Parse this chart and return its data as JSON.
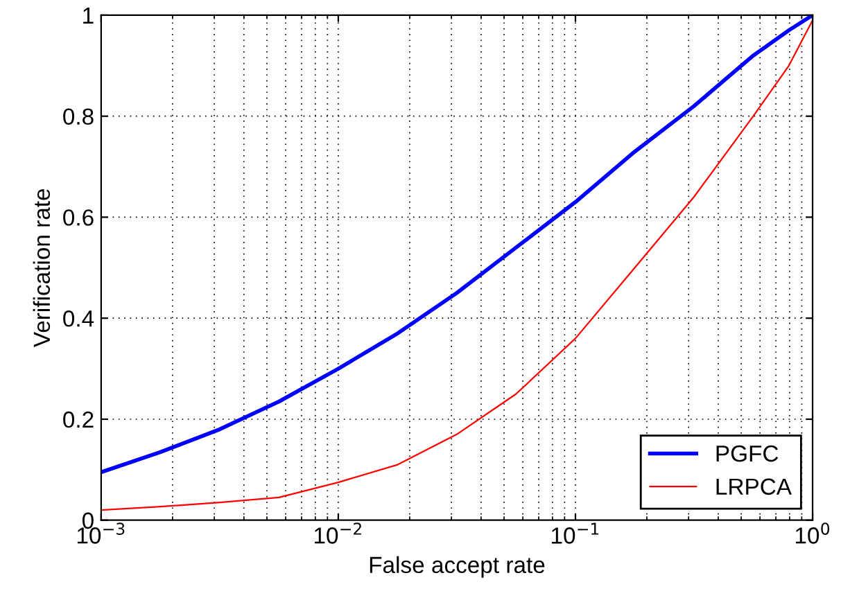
{
  "chart_data": {
    "type": "line",
    "xlabel": "False accept rate",
    "ylabel": "Verification rate",
    "log": "x",
    "grid": true,
    "legend": "bottom right",
    "xlim": [
      0.001,
      1
    ],
    "ylim": [
      0,
      1
    ],
    "xticks": [
      {
        "value": 0.001,
        "label": "10$^{−3}$"
      },
      {
        "value": 0.01,
        "label": "10$^{−2}$"
      },
      {
        "value": 0.1,
        "label": "10$^{−1}$"
      },
      {
        "value": 1,
        "label": "10$^{0}$"
      }
    ],
    "yticks": [
      0,
      0.2,
      0.4,
      0.6,
      0.8,
      1
    ],
    "series": [
      {
        "name": "PGFC",
        "color": "#0000ff",
        "x": [
          0.001,
          0.00178,
          0.00316,
          0.00562,
          0.01,
          0.0178,
          0.0316,
          0.0562,
          0.1,
          0.178,
          0.316,
          0.562,
          0.794,
          1
        ],
        "values": [
          0.095,
          0.135,
          0.18,
          0.235,
          0.3,
          0.37,
          0.45,
          0.54,
          0.63,
          0.73,
          0.82,
          0.92,
          0.97,
          1.0
        ]
      },
      {
        "name": "LRPCA",
        "color": "#ff0000",
        "x": [
          0.001,
          0.00178,
          0.00316,
          0.00562,
          0.01,
          0.0178,
          0.0316,
          0.0562,
          0.1,
          0.178,
          0.316,
          0.562,
          0.794,
          1
        ],
        "values": [
          0.02,
          0.027,
          0.035,
          0.045,
          0.075,
          0.11,
          0.17,
          0.25,
          0.36,
          0.5,
          0.64,
          0.8,
          0.9,
          0.99
        ]
      }
    ]
  }
}
